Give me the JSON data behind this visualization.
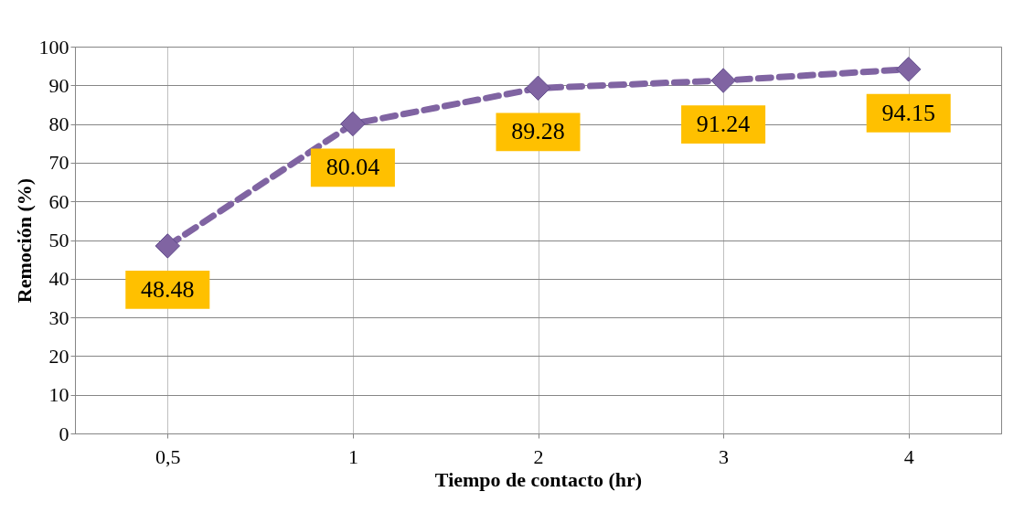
{
  "chart_data": {
    "type": "line",
    "xlabel": "Tiempo de contacto (hr)",
    "ylabel": "Remoción (%)",
    "categories": [
      "0,5",
      "1",
      "2",
      "3",
      "4"
    ],
    "series": [
      {
        "color": "#8064a2",
        "values": [
          48.48,
          80.04,
          89.28,
          91.24,
          94.15
        ]
      }
    ],
    "ylim": [
      0,
      100
    ],
    "yticks": [
      0,
      10,
      20,
      30,
      40,
      50,
      60,
      70,
      80,
      90,
      100
    ],
    "grid": true,
    "marker": "diamond",
    "line_style": "dashed",
    "data_labels": true
  }
}
